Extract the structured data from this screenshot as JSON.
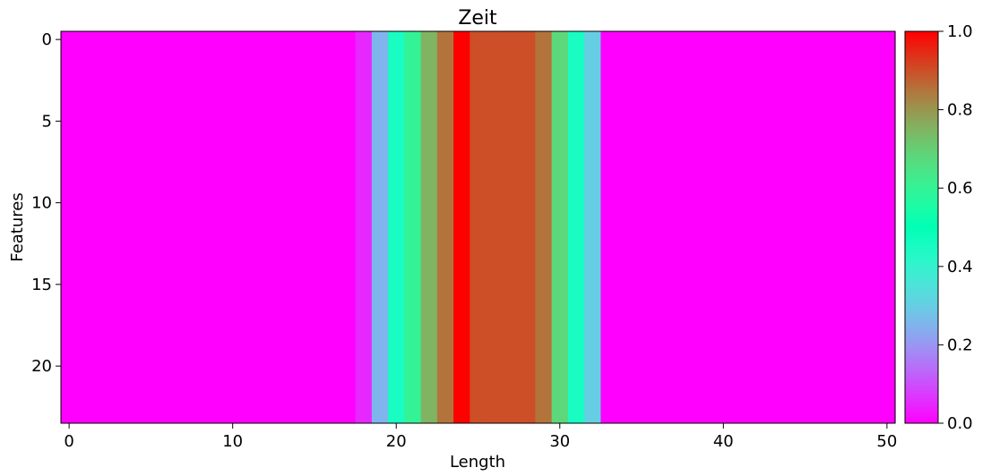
{
  "chart_data": {
    "type": "heatmap",
    "title": "Zeit",
    "xlabel": "Length",
    "ylabel": "Features",
    "n_columns": 51,
    "n_rows": 24,
    "xlim": [
      -0.5,
      50.5
    ],
    "ylim": [
      23.5,
      -0.5
    ],
    "x_ticks": [
      0,
      10,
      20,
      30,
      40,
      50
    ],
    "y_ticks": [
      0,
      5,
      10,
      15,
      20
    ],
    "colormap": "rainbow",
    "colorbar_range": [
      0.0,
      1.0
    ],
    "colorbar_ticks": [
      "0.0",
      "0.2",
      "0.4",
      "0.6",
      "0.8",
      "1.0"
    ],
    "column_values": [
      0,
      0,
      0,
      0,
      0,
      0,
      0,
      0,
      0,
      0,
      0,
      0,
      0,
      0,
      0,
      0,
      0,
      0,
      0.05,
      0.25,
      0.45,
      0.6,
      0.75,
      0.85,
      1.0,
      0.9,
      0.9,
      0.9,
      0.9,
      0.85,
      0.68,
      0.45,
      0.3,
      0,
      0,
      0,
      0,
      0,
      0,
      0,
      0,
      0,
      0,
      0,
      0,
      0,
      0,
      0,
      0,
      0,
      0
    ],
    "rows_identical": true
  }
}
